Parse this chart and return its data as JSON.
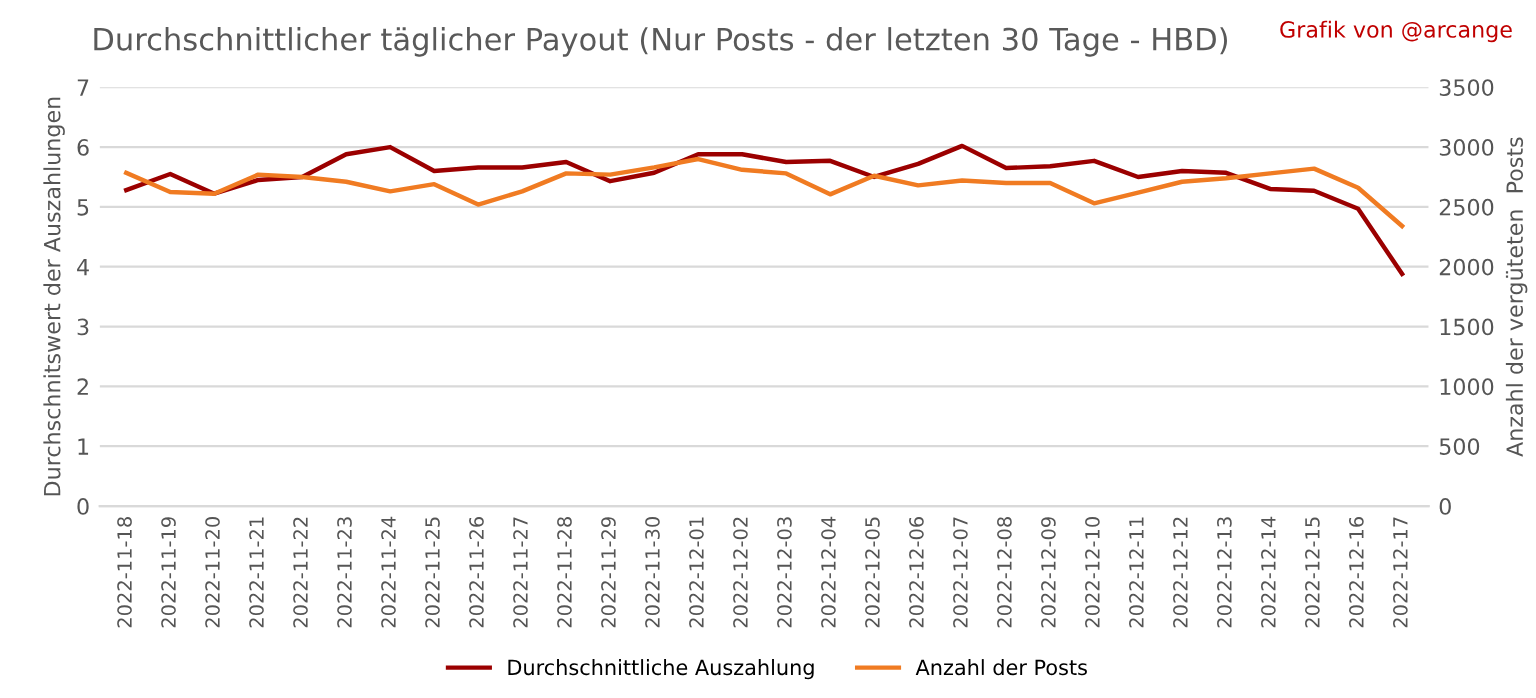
{
  "chart_data": {
    "type": "line",
    "title": "Durchschnittlicher täglicher Payout (Nur Posts - der letzten 30 Tage - HBD)",
    "annotations": [
      "Grafik von @arcange"
    ],
    "ylabel": "Durchschnitswert der Auszahlungen",
    "y2label": "Anzahl der vergüteten  Posts",
    "categories": [
      "2022-11-18",
      "2022-11-19",
      "2022-11-20",
      "2022-11-21",
      "2022-11-22",
      "2022-11-23",
      "2022-11-24",
      "2022-11-25",
      "2022-11-26",
      "2022-11-27",
      "2022-11-28",
      "2022-11-29",
      "2022-11-30",
      "2022-12-01",
      "2022-12-02",
      "2022-12-03",
      "2022-12-04",
      "2022-12-05",
      "2022-12-06",
      "2022-12-07",
      "2022-12-08",
      "2022-12-09",
      "2022-12-10",
      "2022-12-11",
      "2022-12-12",
      "2022-12-13",
      "2022-12-14",
      "2022-12-15",
      "2022-12-16",
      "2022-12-17"
    ],
    "series": [
      {
        "name": "Durchschnittliche Auszahlung",
        "color": "#9b0000",
        "values": [
          5.28,
          5.55,
          5.22,
          5.45,
          5.5,
          5.88,
          6.0,
          5.6,
          5.66,
          5.66,
          5.75,
          5.43,
          5.57,
          5.88,
          5.88,
          5.75,
          5.77,
          5.5,
          5.72,
          6.02,
          5.65,
          5.68,
          5.77,
          5.5,
          5.6,
          5.57,
          5.3,
          5.27,
          4.97,
          3.88
        ]
      },
      {
        "name": "Anzahl der Posts",
        "color": "#f07b22",
        "axis": "y2",
        "values": [
          2785,
          2625,
          2610,
          2770,
          2750,
          2710,
          2630,
          2690,
          2520,
          2630,
          2780,
          2770,
          2830,
          2900,
          2810,
          2780,
          2605,
          2760,
          2680,
          2720,
          2700,
          2700,
          2530,
          2620,
          2710,
          2740,
          2780,
          2820,
          2660,
          2340
        ]
      }
    ],
    "ylim": [
      0,
      7
    ],
    "yticks": [
      0,
      1,
      2,
      3,
      4,
      5,
      6,
      7
    ],
    "y2lim": [
      0,
      3500
    ],
    "y2ticks": [
      0,
      500,
      1000,
      1500,
      2000,
      2500,
      3000,
      3500
    ],
    "grid": "y",
    "legend": "bottom",
    "marker": "none",
    "line_style": "solid"
  }
}
